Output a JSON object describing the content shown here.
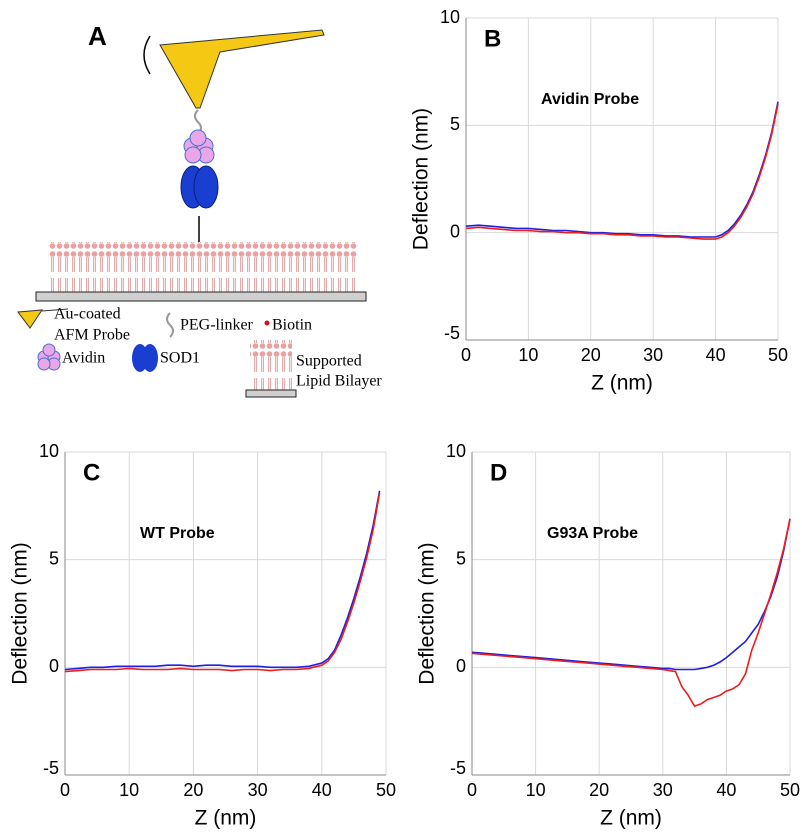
{
  "diagram": {
    "label": "A",
    "legend": {
      "probe": [
        "Au-coated",
        "AFM Probe"
      ],
      "linker": "PEG-linker",
      "biotin": "Biotin",
      "avidin": "Avidin",
      "sod1": "SOD1",
      "bilayer": [
        "Supported",
        "Lipid Bilayer"
      ]
    }
  },
  "chart_data": [
    {
      "type": "line",
      "panel": "B",
      "title": "Avidin Probe",
      "xlabel": "Z (nm)",
      "ylabel": "Deflection (nm)",
      "x": [
        0,
        2,
        4,
        6,
        8,
        10,
        12,
        14,
        16,
        18,
        20,
        22,
        24,
        26,
        28,
        30,
        32,
        34,
        36,
        38,
        40,
        41,
        42,
        43,
        44,
        45,
        46,
        47,
        48,
        49,
        50
      ],
      "series": [
        {
          "color": "#1f1fe0",
          "values": [
            0.3,
            0.35,
            0.3,
            0.25,
            0.2,
            0.2,
            0.15,
            0.1,
            0.1,
            0.05,
            0,
            0,
            -0.05,
            -0.05,
            -0.1,
            -0.1,
            -0.15,
            -0.15,
            -0.2,
            -0.2,
            -0.2,
            -0.1,
            0.1,
            0.4,
            0.8,
            1.3,
            1.9,
            2.7,
            3.6,
            4.7,
            6.1
          ]
        },
        {
          "color": "#ee1c1c",
          "values": [
            0.2,
            0.25,
            0.2,
            0.15,
            0.1,
            0.1,
            0.05,
            0.05,
            0,
            0,
            -0.05,
            -0.05,
            -0.1,
            -0.1,
            -0.15,
            -0.15,
            -0.2,
            -0.2,
            -0.25,
            -0.3,
            -0.3,
            -0.2,
            0,
            0.3,
            0.7,
            1.2,
            1.8,
            2.6,
            3.5,
            4.6,
            6.0
          ]
        }
      ],
      "xlim": [
        0,
        50
      ],
      "ylim": [
        -5,
        10
      ],
      "xticks": [
        0,
        10,
        20,
        30,
        40,
        50
      ],
      "yticks": [
        -5,
        0,
        5,
        10
      ],
      "grid": true
    },
    {
      "type": "line",
      "panel": "C",
      "title": "WT Probe",
      "xlabel": "Z (nm)",
      "ylabel": "Deflection (nm)",
      "x": [
        0,
        2,
        4,
        6,
        8,
        10,
        12,
        14,
        16,
        18,
        20,
        22,
        24,
        26,
        28,
        30,
        32,
        34,
        36,
        38,
        40,
        41,
        42,
        43,
        44,
        45,
        46,
        47,
        48,
        49
      ],
      "series": [
        {
          "color": "#1f1fe0",
          "values": [
            -0.1,
            -0.05,
            0,
            0,
            0.05,
            0.05,
            0.05,
            0.05,
            0.1,
            0.1,
            0.05,
            0.1,
            0.1,
            0.05,
            0.05,
            0.05,
            0,
            0,
            0,
            0.05,
            0.2,
            0.4,
            0.8,
            1.5,
            2.3,
            3.2,
            4.2,
            5.3,
            6.6,
            8.2
          ]
        },
        {
          "color": "#ee1c1c",
          "values": [
            -0.2,
            -0.15,
            -0.1,
            -0.1,
            -0.1,
            -0.05,
            -0.1,
            -0.1,
            -0.1,
            -0.05,
            -0.1,
            -0.1,
            -0.1,
            -0.15,
            -0.1,
            -0.1,
            -0.15,
            -0.1,
            -0.1,
            -0.05,
            0.1,
            0.3,
            0.7,
            1.3,
            2.1,
            3.0,
            4.0,
            5.1,
            6.4,
            8.1
          ]
        }
      ],
      "xlim": [
        0,
        50
      ],
      "ylim": [
        -5,
        10
      ],
      "xticks": [
        0,
        10,
        20,
        30,
        40,
        50
      ],
      "yticks": [
        -5,
        0,
        5,
        10
      ],
      "grid": true
    },
    {
      "type": "line",
      "panel": "D",
      "title": "G93A Probe",
      "xlabel": "Z (nm)",
      "ylabel": "Deflection (nm)",
      "x": [
        0,
        2,
        4,
        6,
        8,
        10,
        12,
        14,
        16,
        18,
        20,
        22,
        24,
        26,
        28,
        30,
        31,
        32,
        33,
        34,
        35,
        36,
        37,
        38,
        39,
        40,
        41,
        42,
        43,
        44,
        45,
        46,
        47,
        48,
        49,
        50
      ],
      "series": [
        {
          "color": "#1f1fe0",
          "values": [
            0.7,
            0.65,
            0.6,
            0.55,
            0.5,
            0.45,
            0.4,
            0.35,
            0.3,
            0.25,
            0.2,
            0.15,
            0.1,
            0.05,
            0,
            -0.05,
            -0.05,
            -0.1,
            -0.1,
            -0.1,
            -0.1,
            -0.05,
            0,
            0.1,
            0.25,
            0.45,
            0.7,
            0.95,
            1.2,
            1.6,
            2.0,
            2.6,
            3.3,
            4.2,
            5.4,
            6.9
          ]
        },
        {
          "color": "#ee1c1c",
          "values": [
            0.65,
            0.6,
            0.55,
            0.5,
            0.45,
            0.4,
            0.35,
            0.3,
            0.25,
            0.2,
            0.15,
            0.1,
            0.05,
            0,
            -0.05,
            -0.1,
            -0.15,
            -0.2,
            -0.9,
            -1.3,
            -1.8,
            -1.7,
            -1.5,
            -1.4,
            -1.3,
            -1.1,
            -1.0,
            -0.8,
            -0.3,
            0.8,
            1.6,
            2.5,
            3.4,
            4.4,
            5.5,
            6.9
          ]
        }
      ],
      "xlim": [
        0,
        50
      ],
      "ylim": [
        -5,
        10
      ],
      "xticks": [
        0,
        10,
        20,
        30,
        40,
        50
      ],
      "yticks": [
        -5,
        0,
        5,
        10
      ],
      "grid": true
    }
  ]
}
